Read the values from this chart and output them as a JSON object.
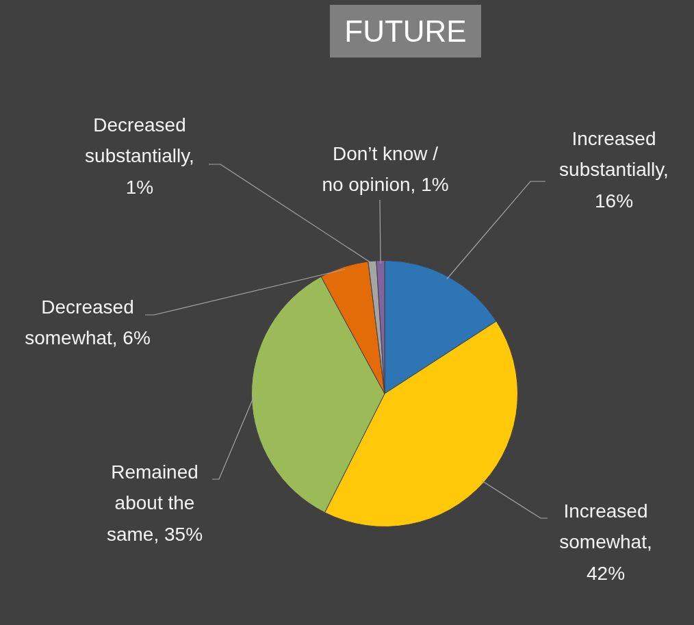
{
  "chart_data": {
    "type": "pie",
    "title": "FUTURE",
    "categories": [
      "Increased substantially, 16%",
      "Increased somewhat, 42%",
      "Remained about the same, 35%",
      "Decreased somewhat, 6%",
      "Decreased substantially, 1%",
      "Don’t know / no opinion, 1%"
    ],
    "values": [
      16,
      42,
      35,
      6,
      1,
      1
    ],
    "colors": [
      "#2e75b6",
      "#ffc90a",
      "#9bbb59",
      "#e36c09",
      "#a5a5a5",
      "#8064a2"
    ],
    "legend": false
  }
}
